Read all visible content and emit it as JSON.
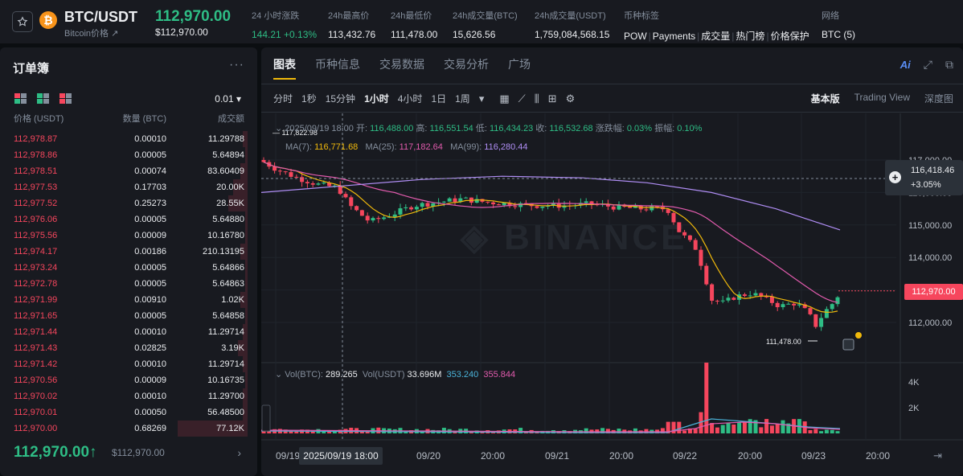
{
  "ticker": {
    "pair": "BTC/USDT",
    "coin_sub": "Bitcoin价格",
    "coin_letter": "₿",
    "last_price": "112,970.00",
    "last_price_usd": "$112,970.00",
    "stats": [
      {
        "label": "24 小时涨跌",
        "value": "144.21 +0.13%",
        "green": true
      },
      {
        "label": "24h最高价",
        "value": "113,432.76"
      },
      {
        "label": "24h最低价",
        "value": "111,478.00"
      },
      {
        "label": "24h成交量(BTC)",
        "value": "15,626.56"
      },
      {
        "label": "24h成交量(USDT)",
        "value": "1,759,084,568.15"
      }
    ],
    "tags_label": "币种标签",
    "tags": [
      "POW",
      "Payments",
      "成交量",
      "热门榜",
      "价格保护"
    ],
    "network_label": "网络",
    "network_value": "BTC (5)"
  },
  "orderbook": {
    "title": "订单簿",
    "step": "0.01 ▾",
    "headers": {
      "price": "价格 (USDT)",
      "qty": "数量 (BTC)",
      "total": "成交额"
    },
    "asks": [
      {
        "price": "112,978.87",
        "qty": "0.00010",
        "total": "11.29788",
        "depth": 0.02
      },
      {
        "price": "112,978.86",
        "qty": "0.00005",
        "total": "5.64894",
        "depth": 0.01
      },
      {
        "price": "112,978.51",
        "qty": "0.00074",
        "total": "83.60409",
        "depth": 0.03
      },
      {
        "price": "112,977.53",
        "qty": "0.17703",
        "total": "20.00K",
        "depth": 0.06
      },
      {
        "price": "112,977.52",
        "qty": "0.25273",
        "total": "28.55K",
        "depth": 0.08
      },
      {
        "price": "112,976.06",
        "qty": "0.00005",
        "total": "5.64880",
        "depth": 0.01
      },
      {
        "price": "112,975.56",
        "qty": "0.00009",
        "total": "10.16780",
        "depth": 0.01
      },
      {
        "price": "112,974.17",
        "qty": "0.00186",
        "total": "210.13195",
        "depth": 0.03
      },
      {
        "price": "112,973.24",
        "qty": "0.00005",
        "total": "5.64866",
        "depth": 0.01
      },
      {
        "price": "112,972.78",
        "qty": "0.00005",
        "total": "5.64863",
        "depth": 0.01
      },
      {
        "price": "112,971.99",
        "qty": "0.00910",
        "total": "1.02K",
        "depth": 0.03
      },
      {
        "price": "112,971.65",
        "qty": "0.00005",
        "total": "5.64858",
        "depth": 0.01
      },
      {
        "price": "112,971.44",
        "qty": "0.00010",
        "total": "11.29714",
        "depth": 0.02
      },
      {
        "price": "112,971.43",
        "qty": "0.02825",
        "total": "3.19K",
        "depth": 0.04
      },
      {
        "price": "112,971.42",
        "qty": "0.00010",
        "total": "11.29714",
        "depth": 0.02
      },
      {
        "price": "112,970.56",
        "qty": "0.00009",
        "total": "10.16735",
        "depth": 0.01
      },
      {
        "price": "112,970.02",
        "qty": "0.00010",
        "total": "11.29700",
        "depth": 0.02
      },
      {
        "price": "112,970.01",
        "qty": "0.00050",
        "total": "56.48500",
        "depth": 0.02
      },
      {
        "price": "112,970.00",
        "qty": "0.68269",
        "total": "77.12K",
        "depth": 0.29
      }
    ],
    "mid_price": "112,970.00↑",
    "mid_price_usd": "$112,970.00",
    "more_arrow": "›"
  },
  "chart": {
    "tabs": [
      "图表",
      "币种信息",
      "交易数据",
      "交易分析",
      "广场"
    ],
    "timeframes": [
      "分时",
      "1秒",
      "15分钟",
      "1小时",
      "4小时",
      "1日",
      "1周"
    ],
    "active_timeframe": "1小时",
    "view_modes": [
      "基本版",
      "Trading View",
      "深度图"
    ],
    "ohlc": {
      "time": "2025/09/19 18:00",
      "open_label": "开:",
      "open": "116,488.00",
      "high_label": "高:",
      "high": "116,551.54",
      "low_label": "低:",
      "low": "116,434.23",
      "close_label": "收:",
      "close": "116,532.68",
      "chg_label": "涨跌幅:",
      "chg": "0.03%",
      "amp_label": "振幅:",
      "amp": "0.10%"
    },
    "ma": {
      "ma7_label": "MA(7):",
      "ma7": "116,771.68",
      "ma25_label": "MA(25):",
      "ma25": "117,182.64",
      "ma99_label": "MA(99):",
      "ma99": "116,280.44"
    },
    "vol": {
      "label": "Vol(BTC):",
      "btc": "289.265",
      "usdt_label": "Vol(USDT)",
      "usdt": "33.696M",
      "v1": "353.240",
      "v2": "355.844"
    },
    "price_axis": [
      "117,000.00",
      "116,000.00",
      "115,000.00",
      "114,000.00",
      "113,000.00",
      "112,000.00"
    ],
    "vol_axis": [
      "4K",
      "2K"
    ],
    "time_axis": [
      "09/19",
      "09/20",
      "20:00",
      "09/21",
      "20:00",
      "09/22",
      "20:00",
      "09/23",
      "20:00"
    ],
    "cross_price": "116,418.46",
    "cross_pct": "+3.05%",
    "current_price": "112,970.00",
    "crosshair_time": "2025/09/19 18:00",
    "high_marker": "117,822.98",
    "low_marker": "111,478.00",
    "watermark": "BINANCE"
  },
  "colors": {
    "up": "#2ebd85",
    "down": "#f6465d",
    "accent": "#f0b90b"
  }
}
